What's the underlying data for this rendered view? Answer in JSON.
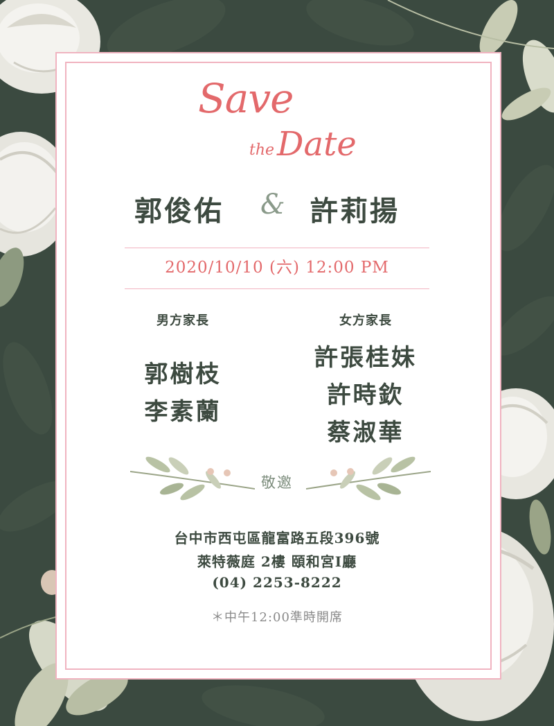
{
  "title": {
    "save": "Save",
    "the": "the",
    "date": "Date"
  },
  "couple": {
    "groom": "郭俊佑",
    "ampersand": "&",
    "bride": "許莉揚"
  },
  "datetime": "2020/10/10 (六) 12:00 PM",
  "groom_parents": {
    "label": "男方家長",
    "names": [
      "郭樹枝",
      "李素蘭"
    ]
  },
  "bride_parents": {
    "label": "女方家長",
    "names": [
      "許張桂妹",
      "許時欽",
      "蔡淑華"
    ]
  },
  "invite_text": "敬邀",
  "venue": {
    "address": "台中市西屯區龍富路五段396號",
    "hall": "萊特薇庭 2樓 頤和宮I廳",
    "phone": "(04) 2253-8222"
  },
  "note": "＊中午12:00準時開席",
  "colors": {
    "background": "#3b4a40",
    "accent_pink": "#e3696b",
    "frame_pink": "#f0b3c0",
    "text_dark": "#3d4a40"
  }
}
